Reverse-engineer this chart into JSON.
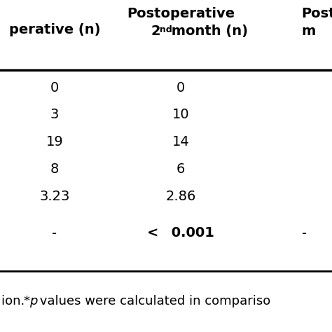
{
  "col1_header": "perative (n)",
  "col2_header_l1": "Postoperative",
  "col2_header_l2_base": "2",
  "col2_header_l2_sup": "nd",
  "col2_header_l2_rest": " month (n)",
  "col3_header_l1": "Posto",
  "col3_header_l2": "m",
  "rows_col1": [
    "0",
    "3",
    "19",
    "8",
    "3.23"
  ],
  "rows_col2": [
    "0",
    "10",
    "14",
    "6",
    "2.86"
  ],
  "prow_col1": "-",
  "prow_col2_lt": "< ",
  "prow_col2_val": "0.001",
  "prow_col3": "-",
  "footnote_parts": [
    "ion. ",
    "*",
    "p",
    " values were calculated in compariso"
  ],
  "bg_color": "#ffffff",
  "text_color": "#000000",
  "line_color": "#000000",
  "font_size": 14,
  "header_font_size": 14,
  "footnote_font_size": 13
}
